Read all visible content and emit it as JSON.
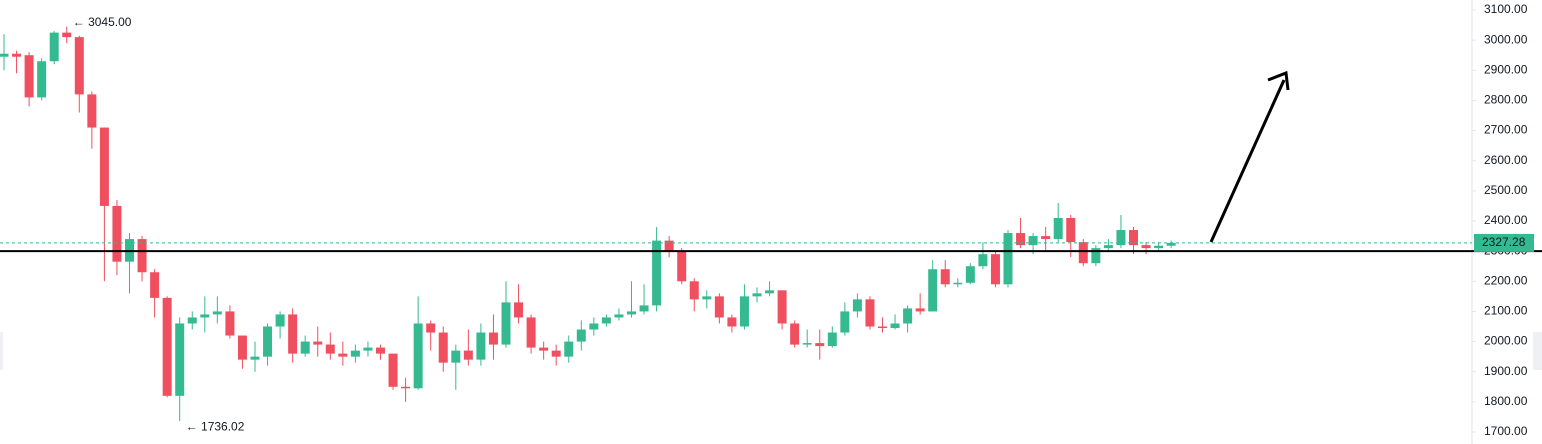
{
  "chart_data": {
    "type": "candlestick",
    "up_color": "#35b991",
    "down_color": "#ef4f5f",
    "series": [
      {
        "open": [
          2945,
          2955,
          2950,
          2810,
          2930,
          3025,
          3010,
          2820,
          2710,
          2450,
          2265,
          2340,
          2230,
          2145,
          1820,
          2060,
          2080,
          2090,
          2100,
          2020,
          1940,
          1950,
          2050,
          2090,
          1960,
          2000,
          1990,
          1960,
          1950,
          1970,
          1980,
          1960,
          1850,
          1845,
          2060,
          2030,
          1930,
          1970,
          1940,
          2030,
          1990,
          2130,
          2080,
          1980,
          1970,
          1950,
          2000,
          2040,
          2060,
          2080,
          2090,
          2100,
          2120,
          2335,
          2300,
          2200,
          2140,
          2150,
          2080,
          2050,
          2150,
          2160,
          2170,
          2060,
          1990,
          1995,
          1985,
          2030,
          2100,
          2140,
          2050,
          2045,
          2060,
          2110,
          2100,
          2240,
          2190,
          2195,
          2250,
          2290,
          2190,
          2360,
          2320,
          2350,
          2340,
          2410,
          2330,
          2260,
          2310,
          2320,
          2370,
          2320,
          2310,
          2318
        ],
        "high": [
          3020,
          2965,
          2960,
          2940,
          3030,
          3045,
          3015,
          2830,
          2710,
          2470,
          2360,
          2350,
          2240,
          2150,
          2080,
          2100,
          2150,
          2150,
          2120,
          2020,
          2000,
          2060,
          2100,
          2110,
          2020,
          2050,
          2030,
          2000,
          1990,
          2000,
          1990,
          1960,
          1880,
          2150,
          2070,
          2050,
          1990,
          2040,
          2060,
          2090,
          2200,
          2190,
          2090,
          2000,
          1990,
          2020,
          2070,
          2080,
          2090,
          2110,
          2200,
          2190,
          2380,
          2350,
          2310,
          2210,
          2170,
          2160,
          2090,
          2190,
          2180,
          2200,
          2170,
          2070,
          2040,
          2040,
          2050,
          2130,
          2160,
          2150,
          2080,
          2090,
          2120,
          2160,
          2270,
          2270,
          2210,
          2260,
          2330,
          2300,
          2370,
          2410,
          2360,
          2380,
          2460,
          2420,
          2340,
          2320,
          2340,
          2420,
          2380,
          2330,
          2330,
          2335
        ],
        "low": [
          2900,
          2890,
          2780,
          2800,
          2920,
          2990,
          2760,
          2640,
          2200,
          2220,
          2160,
          2200,
          2080,
          1815,
          1736.02,
          2040,
          2030,
          2060,
          2010,
          1910,
          1900,
          1920,
          2010,
          1930,
          1950,
          1950,
          1940,
          1920,
          1930,
          1950,
          1940,
          1840,
          1800,
          1840,
          1970,
          1900,
          1840,
          1920,
          1920,
          1940,
          1980,
          2060,
          1960,
          1940,
          1920,
          1930,
          1970,
          2020,
          2050,
          2070,
          2080,
          2090,
          2100,
          2280,
          2190,
          2100,
          2110,
          2060,
          2030,
          2040,
          2130,
          2150,
          2040,
          1980,
          1980,
          1940,
          1980,
          2020,
          2080,
          2040,
          2030,
          2040,
          2030,
          2090,
          2100,
          2180,
          2180,
          2190,
          2240,
          2180,
          2180,
          2310,
          2290,
          2300,
          2330,
          2280,
          2250,
          2250,
          2300,
          2310,
          2290,
          2290,
          2300,
          2310
        ],
        "close": [
          2955,
          2945,
          2810,
          2930,
          3025,
          3010,
          2820,
          2710,
          2450,
          2265,
          2340,
          2230,
          2145,
          1820,
          2060,
          2080,
          2090,
          2100,
          2020,
          1940,
          1950,
          2050,
          2090,
          1960,
          2000,
          1990,
          1960,
          1950,
          1970,
          1980,
          1960,
          1850,
          1845,
          2060,
          2030,
          1930,
          1970,
          1940,
          2030,
          1990,
          2130,
          2080,
          1980,
          1970,
          1950,
          2000,
          2040,
          2060,
          2080,
          2090,
          2100,
          2120,
          2335,
          2300,
          2200,
          2140,
          2150,
          2080,
          2050,
          2150,
          2160,
          2170,
          2060,
          1990,
          1995,
          1985,
          2030,
          2100,
          2140,
          2050,
          2045,
          2060,
          2110,
          2100,
          2240,
          2190,
          2195,
          2250,
          2290,
          2190,
          2360,
          2320,
          2350,
          2340,
          2410,
          2330,
          2260,
          2310,
          2320,
          2370,
          2320,
          2310,
          2318,
          2327.28
        ]
      }
    ],
    "ylim": [
      1700,
      3100
    ],
    "yticks": [
      {
        "value": 1700,
        "label": "1700.00"
      },
      {
        "value": 1800,
        "label": "1800.00"
      },
      {
        "value": 1900,
        "label": "1900.00"
      },
      {
        "value": 2000,
        "label": "2000.00"
      },
      {
        "value": 2100,
        "label": "2100.00"
      },
      {
        "value": 2200,
        "label": "2200.00"
      },
      {
        "value": 2300,
        "label": "2300.00"
      },
      {
        "value": 2400,
        "label": "2400.00"
      },
      {
        "value": 2500,
        "label": "2500.00"
      },
      {
        "value": 2600,
        "label": "2600.00"
      },
      {
        "value": 2700,
        "label": "2700.00"
      },
      {
        "value": 2800,
        "label": "2800.00"
      },
      {
        "value": 2900,
        "label": "2900.00"
      },
      {
        "value": 3000,
        "label": "3000.00"
      },
      {
        "value": 3100,
        "label": "3100.00"
      }
    ],
    "last_price": 2327.28,
    "horizontal_line": 2300,
    "high_label": {
      "value": 3045,
      "label": "3045.00"
    },
    "low_label": 1736.02
  }
}
